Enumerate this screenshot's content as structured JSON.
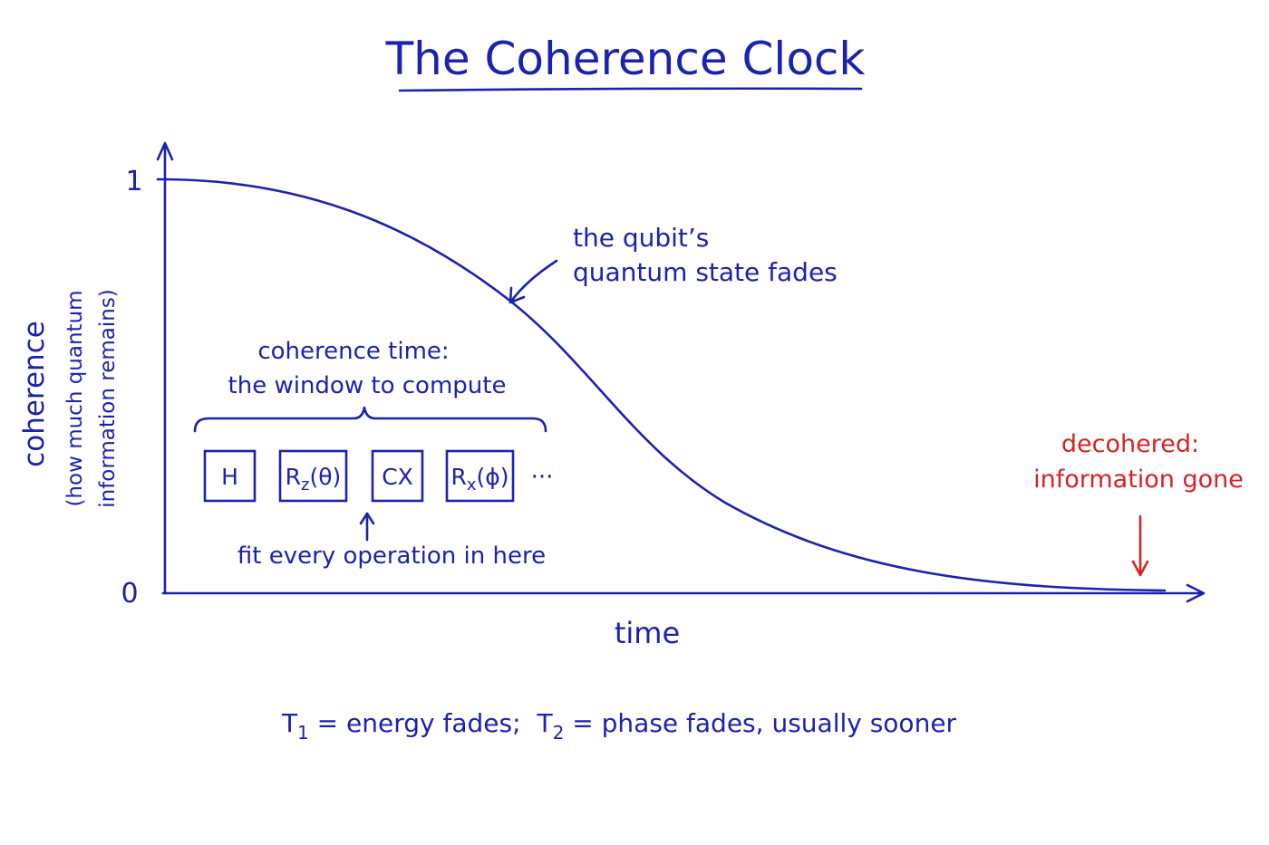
{
  "title": "The Coherence Clock",
  "axes": {
    "y_label": "coherence",
    "y_sublabel": [
      "(how much quantum",
      "information remains)"
    ],
    "y_top_label": "1",
    "y_bottom_label": "0",
    "x_label": "time"
  },
  "annotations": {
    "fade": [
      "the qubit’s",
      "quantum state fades"
    ],
    "window": [
      "coherence time:",
      "the window to compute"
    ],
    "fit": "fit every operation in here",
    "decohered": [
      "decohered:",
      "information gone"
    ]
  },
  "gates": [
    {
      "base": "H"
    },
    {
      "base": "R",
      "sub": "z",
      "arg": "(θ)"
    },
    {
      "base": "CX"
    },
    {
      "base": "R",
      "sub": "x",
      "arg": "(ϕ)"
    }
  ],
  "ellipsis": "···",
  "footnote": [
    {
      "symbol": "T",
      "sub": "1",
      "text": " = energy fades;"
    },
    {
      "symbol": "T",
      "sub": "2",
      "text": " = phase fades, usually sooner"
    }
  ]
}
